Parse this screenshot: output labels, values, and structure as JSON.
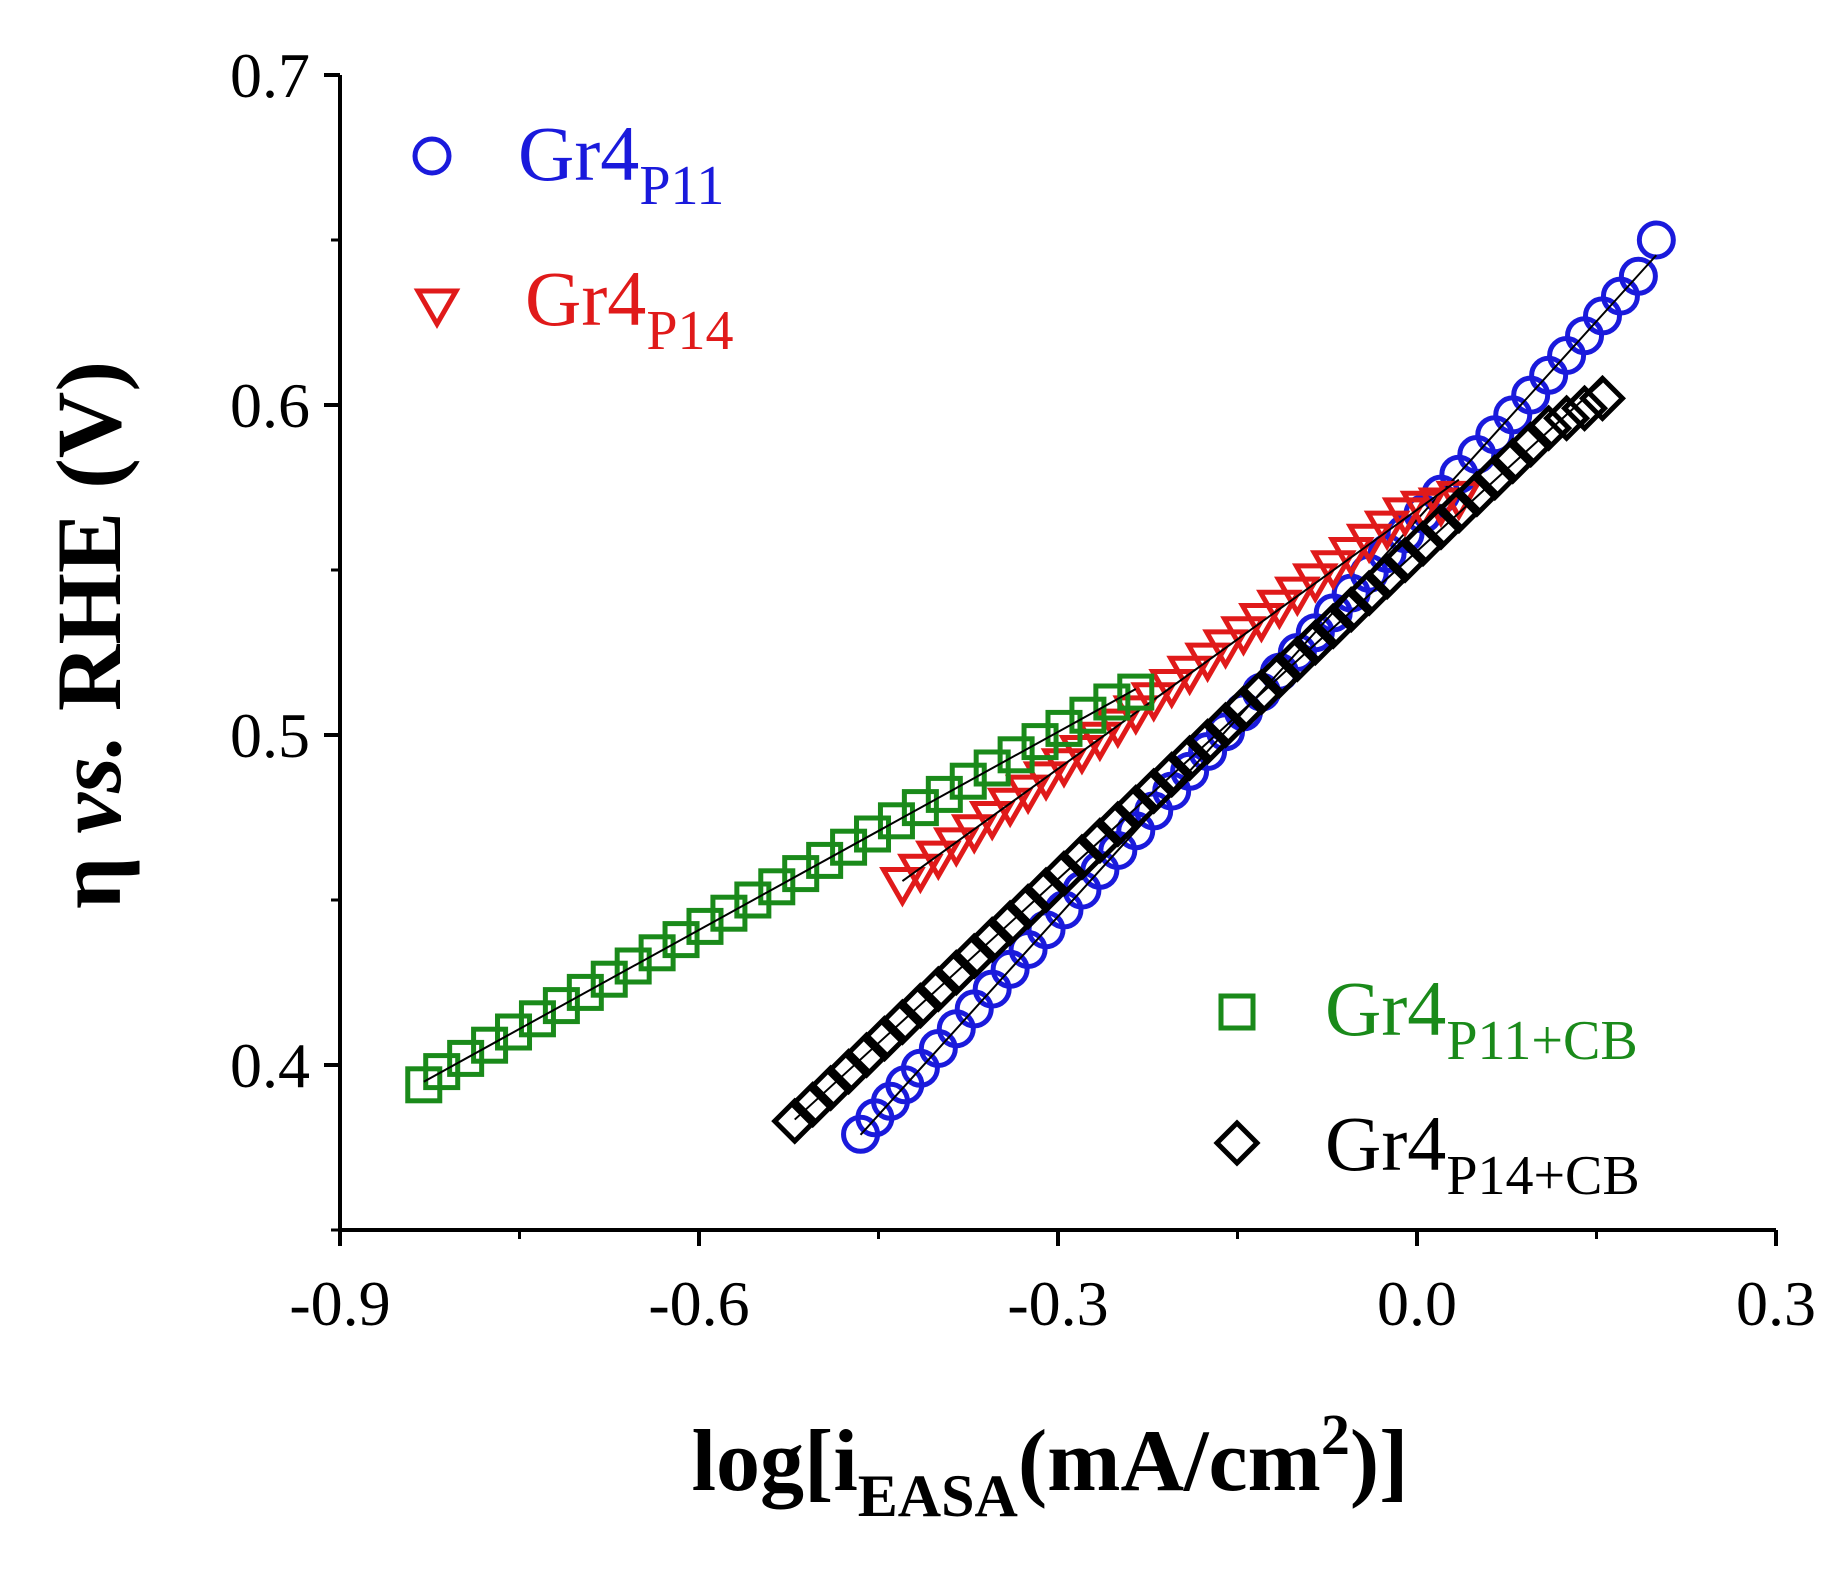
{
  "chart_data": {
    "type": "scatter",
    "xlabel": {
      "main": "log[i",
      "sub": "EASA",
      "mid": "(mA/cm",
      "sup": "2",
      "end": ")]"
    },
    "ylabel": {
      "pre": "η ",
      "italic": "vs.",
      "post": " RHE (V)"
    },
    "xlim": [
      -0.9,
      0.3
    ],
    "ylim": [
      0.35,
      0.7
    ],
    "xticks": [
      -0.9,
      -0.6,
      -0.3,
      0.0,
      0.3
    ],
    "xtick_labels": [
      "-0.9",
      "-0.6",
      "-0.3",
      "0.0",
      "0.3"
    ],
    "yticks": [
      0.4,
      0.5,
      0.6,
      0.7
    ],
    "ytick_labels": [
      "0.4",
      "0.5",
      "0.6",
      "0.7"
    ],
    "fit_lines": true,
    "series": [
      {
        "name": "Gr4",
        "name_sub": "P11",
        "marker": "circle",
        "color": "#1a1adc",
        "x": [
          -0.465,
          -0.453,
          -0.44,
          -0.428,
          -0.415,
          -0.4,
          -0.385,
          -0.37,
          -0.355,
          -0.34,
          -0.325,
          -0.31,
          -0.295,
          -0.28,
          -0.265,
          -0.25,
          -0.235,
          -0.22,
          -0.205,
          -0.19,
          -0.175,
          -0.16,
          -0.145,
          -0.13,
          -0.115,
          -0.1,
          -0.085,
          -0.07,
          -0.055,
          -0.04,
          -0.025,
          -0.01,
          0.005,
          0.02,
          0.035,
          0.05,
          0.065,
          0.08,
          0.095,
          0.11,
          0.125,
          0.14,
          0.155,
          0.17,
          0.185,
          0.2
        ],
        "y": [
          0.379,
          0.384,
          0.389,
          0.394,
          0.399,
          0.405,
          0.411,
          0.417,
          0.423,
          0.429,
          0.435,
          0.441,
          0.447,
          0.453,
          0.459,
          0.465,
          0.471,
          0.477,
          0.483,
          0.489,
          0.495,
          0.501,
          0.507,
          0.513,
          0.519,
          0.525,
          0.531,
          0.537,
          0.543,
          0.549,
          0.555,
          0.561,
          0.567,
          0.573,
          0.579,
          0.585,
          0.591,
          0.597,
          0.603,
          0.609,
          0.615,
          0.621,
          0.627,
          0.633,
          0.639,
          0.65
        ]
      },
      {
        "name": "Gr4",
        "name_sub": "P14",
        "marker": "triangle-down",
        "color": "#e01a1a",
        "x": [
          -0.43,
          -0.415,
          -0.4,
          -0.385,
          -0.37,
          -0.355,
          -0.34,
          -0.325,
          -0.31,
          -0.295,
          -0.28,
          -0.265,
          -0.25,
          -0.235,
          -0.22,
          -0.205,
          -0.19,
          -0.175,
          -0.16,
          -0.145,
          -0.13,
          -0.115,
          -0.1,
          -0.085,
          -0.07,
          -0.055,
          -0.04,
          -0.025,
          -0.01,
          0.005,
          0.02,
          0.035
        ],
        "y": [
          0.455,
          0.459,
          0.463,
          0.467,
          0.471,
          0.475,
          0.479,
          0.483,
          0.487,
          0.491,
          0.495,
          0.499,
          0.503,
          0.507,
          0.511,
          0.515,
          0.519,
          0.523,
          0.527,
          0.531,
          0.535,
          0.539,
          0.543,
          0.547,
          0.551,
          0.555,
          0.559,
          0.563,
          0.567,
          0.569,
          0.57,
          0.572
        ]
      },
      {
        "name": "Gr4",
        "name_sub": "P11+CB",
        "marker": "square",
        "color": "#1a8a1a",
        "x": [
          -0.83,
          -0.815,
          -0.795,
          -0.775,
          -0.755,
          -0.735,
          -0.715,
          -0.695,
          -0.675,
          -0.655,
          -0.635,
          -0.615,
          -0.595,
          -0.575,
          -0.555,
          -0.535,
          -0.515,
          -0.495,
          -0.475,
          -0.455,
          -0.435,
          -0.415,
          -0.395,
          -0.375,
          -0.355,
          -0.335,
          -0.315,
          -0.295,
          -0.275,
          -0.255,
          -0.235
        ],
        "y": [
          0.394,
          0.398,
          0.402,
          0.406,
          0.41,
          0.414,
          0.418,
          0.422,
          0.426,
          0.43,
          0.434,
          0.438,
          0.442,
          0.446,
          0.45,
          0.454,
          0.458,
          0.462,
          0.466,
          0.47,
          0.474,
          0.478,
          0.482,
          0.486,
          0.49,
          0.494,
          0.498,
          0.502,
          0.506,
          0.51,
          0.513
        ]
      },
      {
        "name": "Gr4",
        "name_sub": "P14+CB",
        "marker": "diamond",
        "color": "#000000",
        "x": [
          -0.52,
          -0.505,
          -0.49,
          -0.475,
          -0.46,
          -0.445,
          -0.43,
          -0.415,
          -0.4,
          -0.385,
          -0.37,
          -0.355,
          -0.34,
          -0.325,
          -0.31,
          -0.295,
          -0.28,
          -0.265,
          -0.25,
          -0.235,
          -0.22,
          -0.205,
          -0.19,
          -0.175,
          -0.16,
          -0.145,
          -0.13,
          -0.115,
          -0.1,
          -0.085,
          -0.07,
          -0.055,
          -0.04,
          -0.025,
          -0.01,
          0.005,
          0.02,
          0.035,
          0.05,
          0.065,
          0.08,
          0.095,
          0.11,
          0.125,
          0.14,
          0.155
        ],
        "y": [
          0.383,
          0.388,
          0.393,
          0.398,
          0.403,
          0.408,
          0.413,
          0.418,
          0.423,
          0.428,
          0.433,
          0.438,
          0.443,
          0.448,
          0.453,
          0.458,
          0.463,
          0.468,
          0.473,
          0.478,
          0.483,
          0.488,
          0.493,
          0.498,
          0.503,
          0.508,
          0.513,
          0.518,
          0.523,
          0.528,
          0.533,
          0.538,
          0.543,
          0.548,
          0.553,
          0.558,
          0.563,
          0.568,
          0.573,
          0.578,
          0.583,
          0.588,
          0.593,
          0.596,
          0.599,
          0.602
        ]
      }
    ]
  }
}
